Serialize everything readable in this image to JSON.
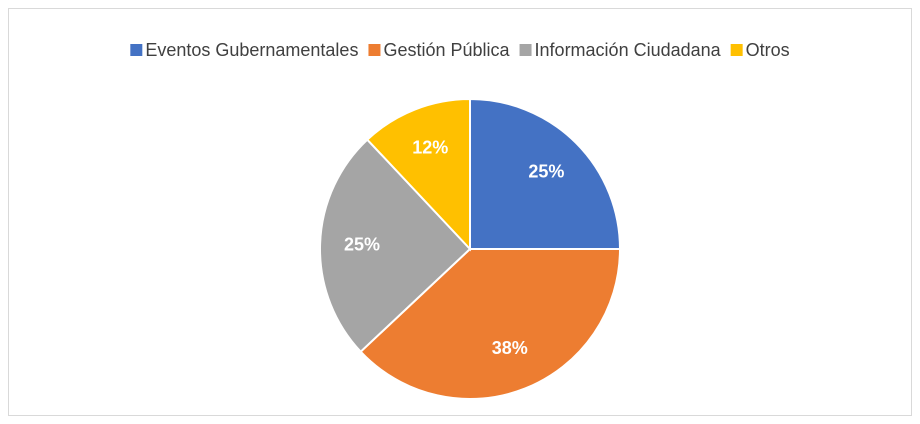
{
  "chart_data": {
    "type": "pie",
    "categories": [
      "Eventos Gubernamentales",
      "Gestión Pública",
      "Información Ciudadana",
      "Otros"
    ],
    "values": [
      25,
      38,
      25,
      12
    ],
    "value_labels": [
      "25%",
      "38%",
      "25%",
      "12%"
    ],
    "colors": [
      "#4472c4",
      "#ed7d31",
      "#a5a5a5",
      "#ffc000"
    ],
    "legend": "top"
  }
}
